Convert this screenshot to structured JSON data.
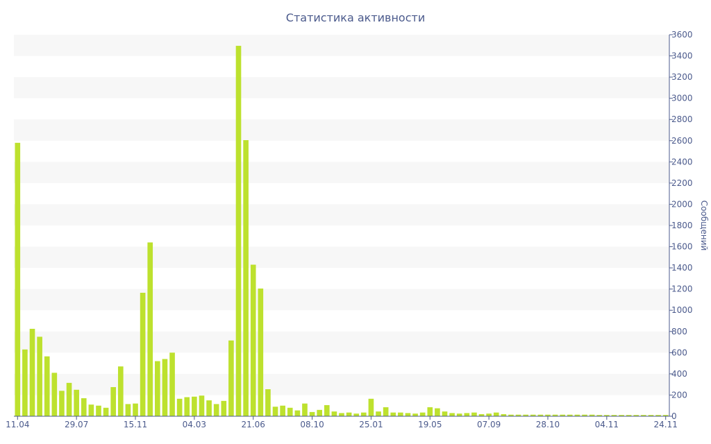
{
  "chart_data": {
    "type": "bar",
    "title": "Статистика активности",
    "xlabel": "",
    "ylabel": "Сообщений",
    "ylim": [
      0,
      3600
    ],
    "y_ticks": [
      0,
      200,
      400,
      600,
      800,
      1000,
      1200,
      1400,
      1600,
      1800,
      2000,
      2200,
      2400,
      2600,
      2800,
      3000,
      3200,
      3400,
      3600
    ],
    "x_tick_labels": [
      {
        "index": 0,
        "label": "11.04"
      },
      {
        "index": 8,
        "label": "29.07"
      },
      {
        "index": 16,
        "label": "15.11"
      },
      {
        "index": 24,
        "label": "04.03"
      },
      {
        "index": 32,
        "label": "21.06"
      },
      {
        "index": 40,
        "label": "08.10"
      },
      {
        "index": 48,
        "label": "25.01"
      },
      {
        "index": 56,
        "label": "19.05"
      },
      {
        "index": 64,
        "label": "07.09"
      },
      {
        "index": 72,
        "label": "28.10"
      },
      {
        "index": 80,
        "label": "04.11"
      },
      {
        "index": 88,
        "label": "24.11"
      }
    ],
    "y_axis_side": "right",
    "grid": "horizontal alternating bands",
    "legend": "none",
    "values": [
      2580,
      630,
      825,
      750,
      565,
      410,
      240,
      315,
      250,
      170,
      110,
      100,
      80,
      275,
      470,
      115,
      120,
      1165,
      1640,
      520,
      540,
      600,
      165,
      180,
      185,
      195,
      150,
      115,
      145,
      715,
      3495,
      2605,
      1430,
      1205,
      255,
      90,
      100,
      80,
      55,
      120,
      40,
      60,
      105,
      45,
      30,
      35,
      25,
      35,
      165,
      45,
      85,
      35,
      35,
      30,
      25,
      35,
      85,
      75,
      45,
      30,
      25,
      30,
      35,
      20,
      25,
      35,
      20,
      15,
      15,
      15,
      15,
      15,
      15,
      15,
      15,
      15,
      15,
      15,
      15,
      12,
      12,
      12,
      12,
      12,
      12,
      12,
      12,
      12,
      12
    ],
    "colors": {
      "bar": "#bde12e",
      "band": "#f7f7f7",
      "text": "#4b5a8c",
      "axis": "#4b5a8c"
    }
  }
}
